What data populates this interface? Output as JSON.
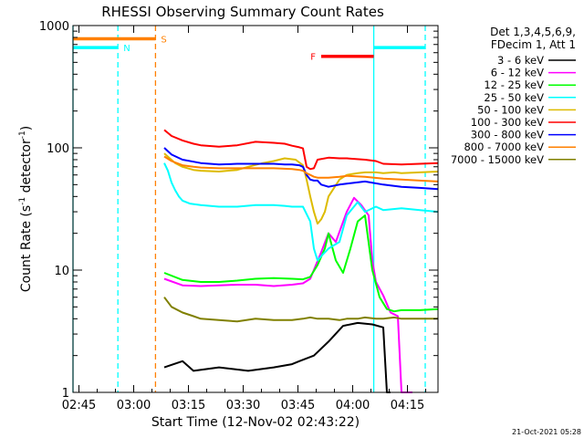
{
  "chart_data": {
    "type": "line",
    "title": "RHESSI Observing Summary Count Rates",
    "xlabel": "Start Time (12-Nov-02 02:43:22)",
    "ylabel_main": "Count Rate (s",
    "ylabel_sup1": "-1",
    "ylabel_mid": " detector",
    "ylabel_sup2": "-1",
    "ylabel_end": ")",
    "yscale": "log",
    "x_unit": "minutes since 02:43:22 on 12-Nov-02",
    "xlim": [
      0,
      100
    ],
    "ylim": [
      1,
      1000
    ],
    "x_ticks": [
      {
        "label": "02:45",
        "x": 1.63
      },
      {
        "label": "03:00",
        "x": 16.63
      },
      {
        "label": "03:15",
        "x": 31.63
      },
      {
        "label": "03:30",
        "x": 46.63
      },
      {
        "label": "03:45",
        "x": 61.63
      },
      {
        "label": "04:00",
        "x": 76.63
      },
      {
        "label": "04:15",
        "x": 91.63
      }
    ],
    "y_ticks": [
      {
        "label": "1",
        "y": 1
      },
      {
        "label": "10",
        "y": 10
      },
      {
        "label": "100",
        "y": 100
      },
      {
        "label": "1000",
        "y": 1000
      }
    ],
    "legend_header": [
      "Det 1,3,4,5,6,9,",
      "FDecim 1, Att 1"
    ],
    "legend_placement": "right",
    "series": [
      {
        "name": "3 - 6 keV",
        "color": "#000000",
        "x": [
          25,
          30,
          33,
          40,
          48,
          55,
          60,
          62,
          66,
          70,
          74,
          78,
          82,
          85,
          86,
          87
        ],
        "y": [
          1.6,
          1.8,
          1.5,
          1.6,
          1.5,
          1.6,
          1.7,
          1.8,
          2.0,
          2.6,
          3.5,
          3.7,
          3.6,
          3.4,
          1.0,
          1.0
        ]
      },
      {
        "name": "6 - 12 keV",
        "color": "#ff00ff",
        "x": [
          25,
          30,
          35,
          40,
          45,
          50,
          55,
          60,
          63,
          65,
          68,
          70,
          72,
          75,
          77,
          79,
          81,
          82,
          83,
          85,
          87,
          89,
          90,
          91,
          92,
          93
        ],
        "y": [
          8.5,
          7.5,
          7.4,
          7.5,
          7.6,
          7.6,
          7.4,
          7.6,
          7.8,
          8.5,
          14,
          20,
          17,
          30,
          39,
          34,
          28,
          12,
          8.0,
          6.2,
          4.5,
          4.2,
          1.0,
          1.0,
          1.0,
          1.0
        ]
      },
      {
        "name": "12 - 25 keV",
        "color": "#00ff00",
        "x": [
          25,
          30,
          35,
          40,
          45,
          50,
          55,
          60,
          63,
          65,
          67,
          69,
          70,
          72,
          74,
          76,
          78,
          80,
          82,
          84,
          86,
          88,
          90,
          95,
          100
        ],
        "y": [
          9.5,
          8.3,
          8.0,
          8.0,
          8.2,
          8.5,
          8.6,
          8.5,
          8.4,
          8.8,
          11,
          15,
          20,
          12,
          9.5,
          15,
          25,
          28,
          10,
          6.0,
          4.8,
          4.6,
          4.7,
          4.7,
          4.8
        ]
      },
      {
        "name": "25 - 50 keV",
        "color": "#00ffff",
        "x": [
          25,
          26,
          27,
          28,
          29,
          30,
          32,
          35,
          40,
          45,
          50,
          55,
          58,
          60,
          63,
          65,
          66,
          67,
          68,
          70,
          73,
          75,
          78,
          80,
          83,
          85,
          90,
          95,
          100
        ],
        "y": [
          75,
          65,
          52,
          45,
          40,
          37,
          35,
          34,
          33,
          33,
          34,
          34,
          33.5,
          33,
          33,
          25,
          15,
          12,
          13,
          15,
          17,
          28,
          36,
          30,
          33,
          31,
          32,
          31,
          30
        ]
      },
      {
        "name": "50 - 100 keV",
        "color": "#ddbb00",
        "x": [
          25,
          28,
          30,
          33,
          35,
          40,
          45,
          48,
          52,
          55,
          58,
          61,
          63,
          64,
          65,
          66,
          67,
          68,
          69,
          70,
          73,
          75,
          78,
          80,
          83,
          85,
          88,
          90,
          95,
          100
        ],
        "y": [
          90,
          75,
          70,
          66,
          65,
          64,
          66,
          70,
          75,
          78,
          82,
          80,
          72,
          55,
          40,
          30,
          24,
          26,
          30,
          40,
          55,
          60,
          62,
          63,
          63,
          62,
          63,
          62,
          63,
          64
        ]
      },
      {
        "name": "100 - 300 keV",
        "color": "#ff0000",
        "x": [
          25,
          27,
          30,
          33,
          35,
          40,
          45,
          50,
          55,
          58,
          60,
          62,
          63,
          64,
          65,
          66,
          67,
          70,
          73,
          75,
          80,
          83,
          85,
          90,
          95,
          100
        ],
        "y": [
          140,
          125,
          115,
          108,
          105,
          102,
          105,
          112,
          110,
          108,
          104,
          101,
          99,
          70,
          67,
          68,
          80,
          83,
          82,
          82,
          80,
          78,
          74,
          73,
          74,
          75
        ]
      },
      {
        "name": "300 - 800 keV",
        "color": "#0000ff",
        "x": [
          25,
          27,
          30,
          33,
          35,
          40,
          45,
          50,
          55,
          58,
          60,
          62,
          63,
          64,
          65,
          66,
          67,
          68,
          70,
          73,
          75,
          80,
          85,
          90,
          95,
          100
        ],
        "y": [
          100,
          88,
          80,
          77,
          75,
          73,
          74,
          74,
          74,
          73,
          73,
          72,
          70,
          60,
          55,
          54,
          54,
          50,
          48,
          50,
          51,
          53,
          50,
          48,
          47,
          46
        ]
      },
      {
        "name": "800 - 7000 keV",
        "color": "#ff8000",
        "x": [
          25,
          27,
          30,
          33,
          35,
          40,
          45,
          50,
          55,
          60,
          62,
          63,
          64,
          65,
          66,
          67,
          68,
          70,
          73,
          75,
          80,
          85,
          90,
          95,
          100
        ],
        "y": [
          85,
          78,
          72,
          70,
          69,
          68,
          68,
          68,
          68,
          67,
          66,
          65,
          62,
          60,
          58,
          57,
          57,
          57,
          58,
          59,
          58,
          56,
          55,
          54,
          53
        ]
      },
      {
        "name": "7000 - 15000 keV",
        "color": "#808000",
        "x": [
          25,
          27,
          30,
          33,
          35,
          40,
          45,
          50,
          55,
          60,
          63,
          65,
          67,
          70,
          73,
          75,
          78,
          80,
          83,
          85,
          88,
          90,
          95,
          100
        ],
        "y": [
          6.0,
          5.0,
          4.5,
          4.2,
          4.0,
          3.9,
          3.8,
          4.0,
          3.9,
          3.9,
          4.0,
          4.1,
          4.0,
          4.0,
          3.9,
          4.0,
          4.0,
          4.1,
          4.0,
          4.0,
          4.1,
          4.0,
          4.0,
          4.0
        ]
      }
    ],
    "vertical_lines": [
      {
        "x": 0,
        "color": "#00ffff",
        "style": "solid"
      },
      {
        "x": 12.3,
        "color": "#00ffff",
        "style": "dashed"
      },
      {
        "x": 22.6,
        "color": "#ff8000",
        "style": "dashed"
      },
      {
        "x": 82.4,
        "color": "#00ffff",
        "style": "solid"
      },
      {
        "x": 96.5,
        "color": "#00ffff",
        "style": "dashed"
      }
    ],
    "flag_bars": [
      {
        "label": "S",
        "color": "#ff8000",
        "x": [
          0,
          22.6
        ],
        "y": 780
      },
      {
        "label": "N",
        "color": "#00ffff",
        "x": [
          0,
          12.3
        ],
        "y": 660
      },
      {
        "label": "F",
        "color": "#ff0000",
        "x": [
          68,
          82.4
        ],
        "y": 560
      },
      {
        "label": "",
        "color": "#00ffff",
        "x": [
          82.4,
          96.5
        ],
        "y": 660
      }
    ]
  },
  "footer": {
    "timestamp": "21-Oct-2021 05:28"
  }
}
